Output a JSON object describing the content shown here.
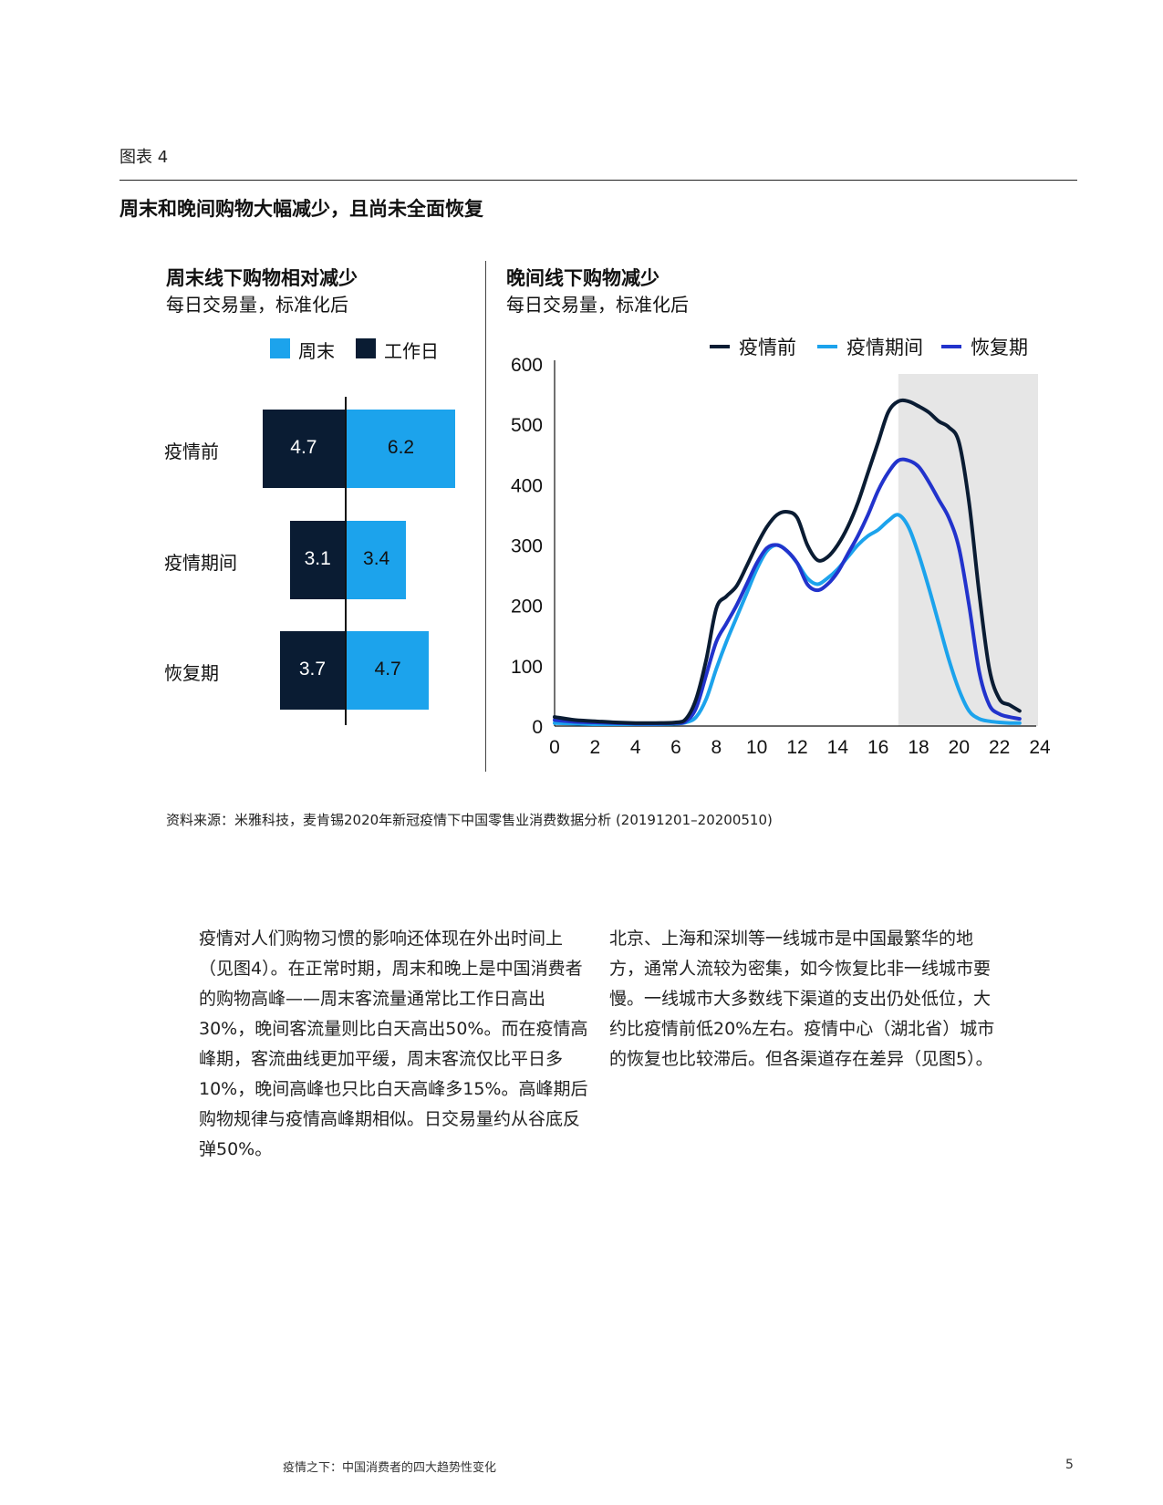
{
  "figure_label": "图表 4",
  "figure_title": "周末和晚间购物大幅减少，且尚未全面恢复",
  "chart_data": [
    {
      "type": "bar",
      "title": "周末线下购物相对减少",
      "subtitle": "每日交易量，标准化后",
      "legend": [
        {
          "name": "周末",
          "color": "#1ca3ec"
        },
        {
          "name": "工作日",
          "color": "#0a1c33"
        }
      ],
      "categories": [
        "疫情前",
        "疫情期间",
        "恢复期"
      ],
      "series": [
        {
          "name": "工作日",
          "color": "#0a1c33",
          "values": [
            4.7,
            3.1,
            3.7
          ]
        },
        {
          "name": "周末",
          "color": "#1ca3ec",
          "values": [
            6.2,
            3.4,
            4.7
          ]
        }
      ]
    },
    {
      "type": "line",
      "title": "晚间线下购物减少",
      "subtitle": "每日交易量，标准化后",
      "legend_position": "top-right",
      "xticks": [
        0,
        2,
        4,
        6,
        8,
        10,
        12,
        14,
        16,
        18,
        20,
        22,
        24
      ],
      "yticks": [
        0,
        100,
        200,
        300,
        400,
        500,
        600
      ],
      "xlim": [
        0,
        24
      ],
      "ylim": [
        0,
        600
      ],
      "shaded_range": [
        17,
        24
      ],
      "shade_color": "#e6e6e6",
      "grid": false,
      "series": [
        {
          "name": "疫情前",
          "color": "#0a1c33",
          "x": [
            0,
            1,
            2,
            3,
            4,
            5,
            6,
            6.5,
            7,
            7.5,
            8,
            8.5,
            9,
            9.5,
            10,
            10.5,
            11,
            11.5,
            12,
            12.5,
            13,
            13.5,
            14,
            14.5,
            15,
            15.5,
            16,
            16.5,
            17,
            17.5,
            18,
            18.5,
            19,
            19.5,
            20,
            20.5,
            21,
            21.5,
            22,
            22.5,
            23
          ],
          "y": [
            15,
            10,
            8,
            6,
            5,
            5,
            6,
            12,
            45,
            110,
            195,
            215,
            232,
            265,
            300,
            330,
            350,
            355,
            345,
            300,
            275,
            280,
            300,
            330,
            370,
            420,
            470,
            520,
            538,
            538,
            530,
            520,
            505,
            495,
            470,
            370,
            220,
            95,
            45,
            35,
            25
          ]
        },
        {
          "name": "疫情期间",
          "color": "#1ca3ec",
          "x": [
            0,
            1,
            2,
            3,
            4,
            5,
            6,
            6.5,
            7,
            7.5,
            8,
            8.5,
            9,
            9.5,
            10,
            10.5,
            11,
            11.5,
            12,
            12.5,
            13,
            13.5,
            14,
            14.5,
            15,
            15.5,
            16,
            16.5,
            17,
            17.5,
            18,
            18.5,
            19,
            19.5,
            20,
            20.5,
            21,
            21.5,
            22,
            22.5,
            23
          ],
          "y": [
            5,
            4,
            3,
            3,
            3,
            3,
            4,
            6,
            15,
            45,
            95,
            140,
            180,
            220,
            260,
            290,
            300,
            290,
            270,
            245,
            235,
            245,
            260,
            280,
            300,
            315,
            325,
            340,
            350,
            330,
            285,
            230,
            170,
            110,
            60,
            25,
            12,
            8,
            6,
            5,
            5
          ]
        },
        {
          "name": "恢复期",
          "color": "#2233cc",
          "x": [
            0,
            1,
            2,
            3,
            4,
            5,
            6,
            6.5,
            7,
            7.5,
            8,
            8.5,
            9,
            9.5,
            10,
            10.5,
            11,
            11.5,
            12,
            12.5,
            13,
            13.5,
            14,
            14.5,
            15,
            15.5,
            16,
            16.5,
            17,
            17.5,
            18,
            18.5,
            19,
            19.5,
            20,
            20.5,
            21,
            21.5,
            22,
            22.5,
            23
          ],
          "y": [
            10,
            7,
            6,
            5,
            4,
            4,
            5,
            8,
            30,
            85,
            140,
            170,
            200,
            235,
            270,
            295,
            300,
            290,
            270,
            235,
            225,
            235,
            255,
            285,
            315,
            350,
            390,
            420,
            440,
            440,
            430,
            405,
            375,
            345,
            295,
            200,
            90,
            35,
            20,
            15,
            12
          ]
        }
      ]
    }
  ],
  "source": "资料来源：米雅科技，麦肯锡2020年新冠疫情下中国零售业消费数据分析 (20191201–20200510)",
  "paragraph_left": "疫情对人们购物习惯的影响还体现在外出时间上（见图4）。在正常时期，周末和晚上是中国消费者的购物高峰——周末客流量通常比工作日高出30%，晚间客流量则比白天高出50%。而在疫情高峰期，客流曲线更加平缓，周末客流仅比平日多10%，晚间高峰也只比白天高峰多15%。高峰期后购物规律与疫情高峰期相似。日交易量约从谷底反弹50%。",
  "paragraph_right": "北京、上海和深圳等一线城市是中国最繁华的地方，通常人流较为密集，如今恢复比非一线城市要慢。一线城市大多数线下渠道的支出仍处低位，大约比疫情前低20%左右。疫情中心（湖北省）城市的恢复也比较滞后。但各渠道存在差异（见图5）。",
  "footer": "疫情之下：中国消费者的四大趋势性变化",
  "page_number": "5"
}
